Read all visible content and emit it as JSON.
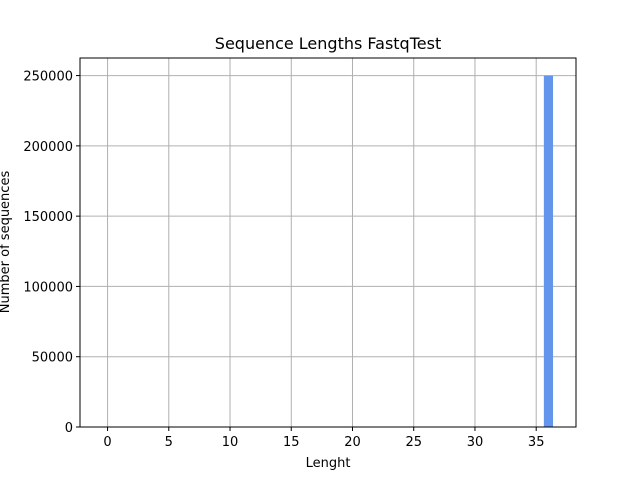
{
  "chart_data": {
    "type": "bar",
    "title": "Sequence Lengths FastqTest",
    "xlabel": "Lenght",
    "ylabel": "Number of sequences",
    "x_ticks": [
      0,
      5,
      10,
      15,
      20,
      25,
      30,
      35
    ],
    "y_ticks": [
      0,
      50000,
      100000,
      150000,
      200000,
      250000
    ],
    "xlim": [
      -2.25,
      38.25
    ],
    "ylim": [
      0,
      262500
    ],
    "grid": true,
    "bar_color": "#6495ed",
    "bars": [
      {
        "x": 36,
        "value": 250000
      }
    ]
  }
}
